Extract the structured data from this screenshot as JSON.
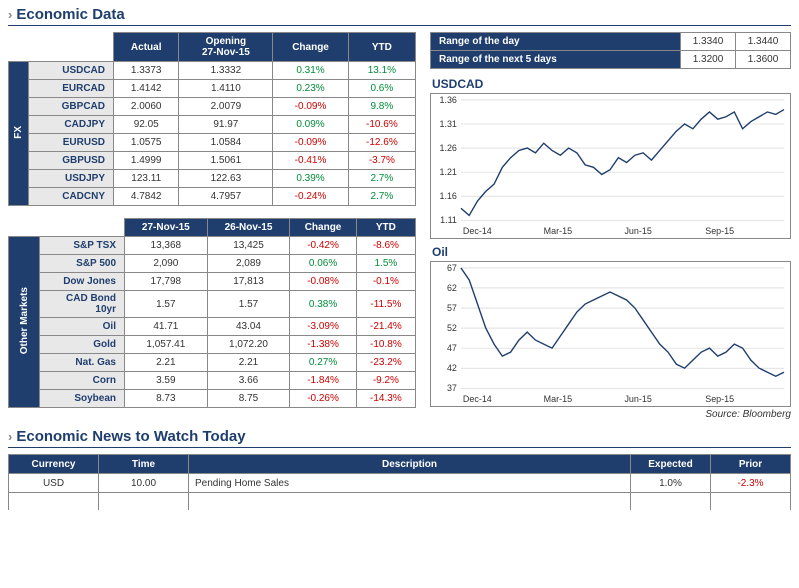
{
  "titles": {
    "economicData": "Economic Data",
    "newsToday": "Economic News to Watch Today",
    "source": "Source: Bloomberg"
  },
  "fx": {
    "sidebar": "FX",
    "headers": [
      "Actual",
      "Opening\n27-Nov-15",
      "Change",
      "YTD"
    ],
    "rows": [
      {
        "label": "USDCAD",
        "actual": "1.3373",
        "open": "1.3332",
        "chg": "0.31%",
        "chgDir": 1,
        "ytd": "13.1%",
        "ytdDir": 1
      },
      {
        "label": "EURCAD",
        "actual": "1.4142",
        "open": "1.4110",
        "chg": "0.23%",
        "chgDir": 1,
        "ytd": "0.6%",
        "ytdDir": 1
      },
      {
        "label": "GBPCAD",
        "actual": "2.0060",
        "open": "2.0079",
        "chg": "-0.09%",
        "chgDir": -1,
        "ytd": "9.8%",
        "ytdDir": 1
      },
      {
        "label": "CADJPY",
        "actual": "92.05",
        "open": "91.97",
        "chg": "0.09%",
        "chgDir": 1,
        "ytd": "-10.6%",
        "ytdDir": -1
      },
      {
        "label": "EURUSD",
        "actual": "1.0575",
        "open": "1.0584",
        "chg": "-0.09%",
        "chgDir": -1,
        "ytd": "-12.6%",
        "ytdDir": -1
      },
      {
        "label": "GBPUSD",
        "actual": "1.4999",
        "open": "1.5061",
        "chg": "-0.41%",
        "chgDir": -1,
        "ytd": "-3.7%",
        "ytdDir": -1
      },
      {
        "label": "USDJPY",
        "actual": "123.11",
        "open": "122.63",
        "chg": "0.39%",
        "chgDir": 1,
        "ytd": "2.7%",
        "ytdDir": 1
      },
      {
        "label": "CADCNY",
        "actual": "4.7842",
        "open": "4.7957",
        "chg": "-0.24%",
        "chgDir": -1,
        "ytd": "2.7%",
        "ytdDir": 1
      }
    ]
  },
  "other": {
    "sidebar": "Other Markets",
    "headers": [
      "27-Nov-15",
      "26-Nov-15",
      "Change",
      "YTD"
    ],
    "rows": [
      {
        "label": "S&P TSX",
        "actual": "13,368",
        "open": "13,425",
        "chg": "-0.42%",
        "chgDir": -1,
        "ytd": "-8.6%",
        "ytdDir": -1
      },
      {
        "label": "S&P 500",
        "actual": "2,090",
        "open": "2,089",
        "chg": "0.06%",
        "chgDir": 1,
        "ytd": "1.5%",
        "ytdDir": 1
      },
      {
        "label": "Dow Jones",
        "actual": "17,798",
        "open": "17,813",
        "chg": "-0.08%",
        "chgDir": -1,
        "ytd": "-0.1%",
        "ytdDir": -1
      },
      {
        "label": "CAD Bond 10yr",
        "actual": "1.57",
        "open": "1.57",
        "chg": "0.38%",
        "chgDir": 1,
        "ytd": "-11.5%",
        "ytdDir": -1
      },
      {
        "label": "Oil",
        "actual": "41.71",
        "open": "43.04",
        "chg": "-3.09%",
        "chgDir": -1,
        "ytd": "-21.4%",
        "ytdDir": -1
      },
      {
        "label": "Gold",
        "actual": "1,057.41",
        "open": "1,072.20",
        "chg": "-1.38%",
        "chgDir": -1,
        "ytd": "-10.8%",
        "ytdDir": -1
      },
      {
        "label": "Nat. Gas",
        "actual": "2.21",
        "open": "2.21",
        "chg": "0.27%",
        "chgDir": 1,
        "ytd": "-23.2%",
        "ytdDir": -1
      },
      {
        "label": "Corn",
        "actual": "3.59",
        "open": "3.66",
        "chg": "-1.84%",
        "chgDir": -1,
        "ytd": "-9.2%",
        "ytdDir": -1
      },
      {
        "label": "Soybean",
        "actual": "8.73",
        "open": "8.75",
        "chg": "-0.26%",
        "chgDir": -1,
        "ytd": "-14.3%",
        "ytdDir": -1
      }
    ]
  },
  "ranges": {
    "rows": [
      {
        "label": "Range of the day",
        "lo": "1.3340",
        "hi": "1.3440"
      },
      {
        "label": "Range of the next 5 days",
        "lo": "1.3200",
        "hi": "1.3600"
      }
    ]
  },
  "charts": {
    "usdcad": {
      "title": "USDCAD",
      "yTicks": [
        1.11,
        1.16,
        1.21,
        1.26,
        1.31,
        1.36
      ],
      "xTicks": [
        "Dec-14",
        "Mar-15",
        "Jun-15",
        "Sep-15"
      ],
      "lineColor": "#1f3e6e",
      "gridColor": "#cccccc",
      "data": [
        1.135,
        1.12,
        1.15,
        1.17,
        1.185,
        1.22,
        1.24,
        1.255,
        1.26,
        1.25,
        1.27,
        1.255,
        1.245,
        1.26,
        1.25,
        1.225,
        1.22,
        1.205,
        1.215,
        1.24,
        1.23,
        1.245,
        1.25,
        1.235,
        1.255,
        1.275,
        1.295,
        1.31,
        1.3,
        1.32,
        1.335,
        1.32,
        1.325,
        1.335,
        1.3,
        1.315,
        1.325,
        1.335,
        1.33,
        1.34
      ]
    },
    "oil": {
      "title": "Oil",
      "yTicks": [
        37,
        42,
        47,
        52,
        57,
        62,
        67
      ],
      "xTicks": [
        "Dec-14",
        "Mar-15",
        "Jun-15",
        "Sep-15"
      ],
      "lineColor": "#1f3e6e",
      "gridColor": "#cccccc",
      "data": [
        67,
        64,
        58,
        52,
        48,
        45,
        46,
        49,
        51,
        49,
        48,
        47,
        50,
        53,
        56,
        58,
        59,
        60,
        61,
        60,
        59,
        57,
        54,
        51,
        48,
        46,
        43,
        42,
        44,
        46,
        47,
        45,
        46,
        48,
        47,
        44,
        42,
        41,
        40,
        41
      ]
    }
  },
  "news": {
    "headers": [
      "Currency",
      "Time",
      "Description",
      "Expected",
      "Prior"
    ],
    "rows": [
      {
        "currency": "USD",
        "time": "10.00",
        "desc": "Pending Home Sales",
        "expected": "1.0%",
        "prior": "-2.3%",
        "priorDir": -1
      }
    ]
  }
}
